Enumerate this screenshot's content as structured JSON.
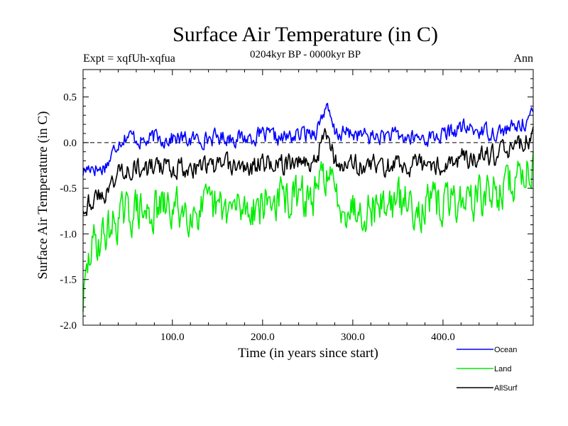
{
  "chart_data": {
    "type": "line",
    "title": "Surface Air Temperature (in C)",
    "experiment_label": "Expt = xqfUh-xqfua",
    "period_label": "0204kyr BP - 0000kyr BP",
    "season_label": "Ann",
    "xlabel": "Time (in years since start)",
    "ylabel": "Surface Air Temperature (in C)",
    "xlim": [
      1,
      500
    ],
    "ylim": [
      -2.0,
      0.8
    ],
    "x_ticks": [
      100,
      200,
      300,
      400
    ],
    "x_tick_labels": [
      "100.0",
      "200.0",
      "300.0",
      "400.0"
    ],
    "y_ticks": [
      0.5,
      0.0,
      -0.5,
      -1.0,
      -1.5,
      -2.0
    ],
    "y_tick_labels": [
      "0.5",
      "0.0",
      "-0.5",
      "-1.0",
      "-1.5",
      "-2.0"
    ],
    "zero_line": true,
    "grid": false,
    "legend_position": "below-right",
    "series": [
      {
        "name": "Ocean",
        "color": "#0000ff",
        "x": [
          1,
          10,
          20,
          30,
          40,
          50,
          60,
          70,
          80,
          90,
          100,
          120,
          140,
          160,
          180,
          200,
          220,
          240,
          260,
          270,
          280,
          300,
          320,
          340,
          360,
          380,
          400,
          420,
          440,
          460,
          480,
          500
        ],
        "values": [
          -0.32,
          -0.25,
          -0.3,
          -0.2,
          0.02,
          0.08,
          0.05,
          0.0,
          0.06,
          0.04,
          0.05,
          0.03,
          0.05,
          0.06,
          0.05,
          0.08,
          0.04,
          0.08,
          0.14,
          0.4,
          0.1,
          0.1,
          0.06,
          0.08,
          0.05,
          0.05,
          0.08,
          0.16,
          0.13,
          0.12,
          0.16,
          0.3
        ]
      },
      {
        "name": "Land",
        "color": "#00ee00",
        "x": [
          1,
          10,
          20,
          30,
          40,
          50,
          60,
          70,
          80,
          90,
          100,
          120,
          140,
          160,
          180,
          200,
          220,
          240,
          260,
          270,
          280,
          300,
          320,
          340,
          360,
          380,
          400,
          420,
          440,
          460,
          480,
          500
        ],
        "values": [
          -1.75,
          -1.15,
          -1.05,
          -0.95,
          -0.82,
          -0.8,
          -0.72,
          -0.8,
          -0.75,
          -0.72,
          -0.74,
          -0.72,
          -0.74,
          -0.74,
          -0.72,
          -0.66,
          -0.62,
          -0.62,
          -0.6,
          -0.28,
          -0.6,
          -0.7,
          -0.7,
          -0.66,
          -0.66,
          -0.7,
          -0.68,
          -0.62,
          -0.6,
          -0.55,
          -0.42,
          -0.2
        ]
      },
      {
        "name": "AllSurf",
        "color": "#000000",
        "x": [
          1,
          10,
          20,
          30,
          40,
          50,
          60,
          70,
          80,
          90,
          100,
          120,
          140,
          160,
          180,
          200,
          220,
          240,
          260,
          270,
          280,
          300,
          320,
          340,
          360,
          380,
          400,
          420,
          440,
          460,
          480,
          500
        ],
        "values": [
          -0.7,
          -0.62,
          -0.6,
          -0.5,
          -0.33,
          -0.26,
          -0.27,
          -0.32,
          -0.26,
          -0.29,
          -0.26,
          -0.27,
          -0.27,
          -0.26,
          -0.28,
          -0.23,
          -0.24,
          -0.22,
          -0.18,
          0.2,
          -0.22,
          -0.24,
          -0.26,
          -0.25,
          -0.26,
          -0.26,
          -0.24,
          -0.17,
          -0.18,
          -0.16,
          -0.05,
          0.08
        ]
      }
    ]
  }
}
